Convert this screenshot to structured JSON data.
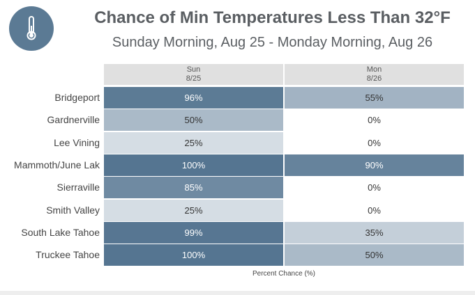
{
  "header": {
    "title": "Chance of Min Temperatures Less Than 32°F",
    "subtitle": "Sunday Morning, Aug 25 - Monday Morning, Aug 26",
    "icon": "thermometer-icon",
    "icon_bg": "#5b7a94"
  },
  "chart_data": {
    "type": "heatmap",
    "columns": [
      {
        "day": "Sun",
        "date": "8/25"
      },
      {
        "day": "Mon",
        "date": "8/26"
      }
    ],
    "rows": [
      {
        "location": "Bridgeport",
        "values": [
          96,
          55
        ]
      },
      {
        "location": "Gardnerville",
        "values": [
          50,
          0
        ]
      },
      {
        "location": "Lee Vining",
        "values": [
          25,
          0
        ]
      },
      {
        "location": "Mammoth/June Lak",
        "values": [
          100,
          90
        ]
      },
      {
        "location": "Sierraville",
        "values": [
          85,
          0
        ]
      },
      {
        "location": "Smith Valley",
        "values": [
          25,
          0
        ]
      },
      {
        "location": "South Lake Tahoe",
        "values": [
          99,
          35
        ]
      },
      {
        "location": "Truckee Tahoe",
        "values": [
          100,
          50
        ]
      }
    ],
    "unit_suffix": "%",
    "xlabel": "Percent Chance (%)",
    "color_scale": [
      "#ffffff",
      "#557591"
    ]
  }
}
